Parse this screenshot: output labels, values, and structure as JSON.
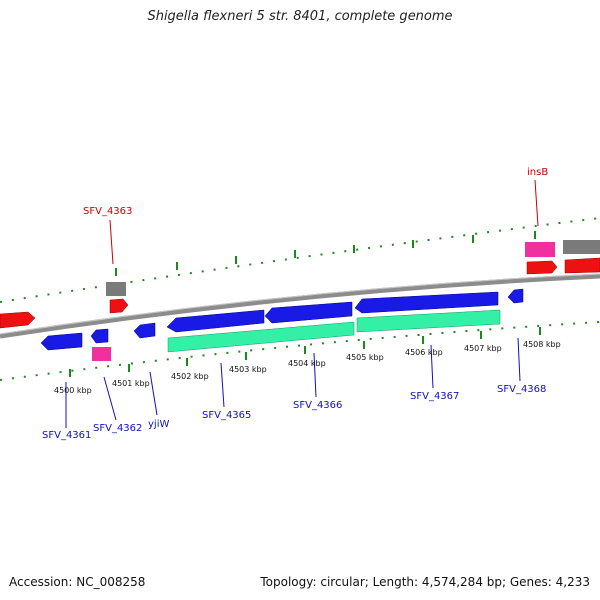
{
  "header": {
    "title": "Shigella flexneri 5 str. 8401, complete genome"
  },
  "footer": {
    "accession_label": "Accession:",
    "accession": "NC_008258",
    "summary": "Topology: circular; Length: 4,574,284 bp; Genes: 4,233"
  },
  "colors": {
    "backbone": "#8c8c8c",
    "forward_cds": "#1a1ae6",
    "reverse_cds": "#ee1111",
    "rna_teal": "#33f0a6",
    "pink": "#f030a0",
    "gray": "#7a7a7a",
    "tick_green": "#1a8a1a",
    "label_blue": "#1010c0",
    "label_red": "#cc0000"
  },
  "ruler": {
    "ticks": [
      {
        "label": "4500 kbp"
      },
      {
        "label": "4501 kbp"
      },
      {
        "label": "4502 kbp"
      },
      {
        "label": "4503 kbp"
      },
      {
        "label": "4504 kbp"
      },
      {
        "label": "4505 kbp"
      },
      {
        "label": "4506 kbp"
      },
      {
        "label": "4507 kbp"
      },
      {
        "label": "4508 kbp"
      }
    ]
  },
  "gene_labels": [
    {
      "text": "SFV_4361",
      "color": "blue"
    },
    {
      "text": "SFV_4362",
      "color": "blue"
    },
    {
      "text": "yjiW",
      "color": "blue"
    },
    {
      "text": "SFV_4365",
      "color": "blue"
    },
    {
      "text": "SFV_4366",
      "color": "blue"
    },
    {
      "text": "SFV_4367",
      "color": "blue"
    },
    {
      "text": "SFV_4368",
      "color": "blue"
    },
    {
      "text": "SFV_4363",
      "color": "red"
    },
    {
      "text": "insB",
      "color": "red"
    }
  ]
}
